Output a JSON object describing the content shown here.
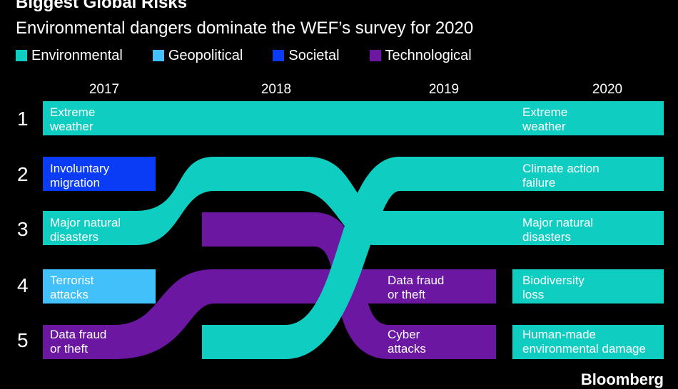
{
  "title": "Biggest Global Risks",
  "subtitle": "Environmental dangers dominate the WEF’s survey for 2020",
  "colors": {
    "Environmental": "#10cdc2",
    "Geopolitical": "#41c0f9",
    "Societal": "#0a3cf5",
    "Technological": "#6b17a2"
  },
  "legend": [
    {
      "name": "Environmental"
    },
    {
      "name": "Geopolitical"
    },
    {
      "name": "Societal"
    },
    {
      "name": "Technological"
    }
  ],
  "chart_data": {
    "type": "table",
    "years": [
      "2017",
      "2018",
      "2019",
      "2020"
    ],
    "ranks": [
      "1",
      "2",
      "3",
      "4",
      "5"
    ],
    "rankings": {
      "2017": [
        {
          "rank": 1,
          "risk": "Extreme weather",
          "category": "Environmental"
        },
        {
          "rank": 2,
          "risk": "Involuntary migration",
          "category": "Societal"
        },
        {
          "rank": 3,
          "risk": "Major natural disasters",
          "category": "Environmental"
        },
        {
          "rank": 4,
          "risk": "Terrorist attacks",
          "category": "Geopolitical"
        },
        {
          "rank": 5,
          "risk": "Data fraud or theft",
          "category": "Technological"
        }
      ],
      "2019": [
        {
          "rank": 4,
          "risk": "Data fraud or theft",
          "category": "Technological"
        },
        {
          "rank": 5,
          "risk": "Cyber attacks",
          "category": "Technological"
        }
      ],
      "2020": [
        {
          "rank": 1,
          "risk": "Extreme weather",
          "category": "Environmental"
        },
        {
          "rank": 2,
          "risk": "Climate action failure",
          "category": "Environmental"
        },
        {
          "rank": 3,
          "risk": "Major natural disasters",
          "category": "Environmental"
        },
        {
          "rank": 4,
          "risk": "Biodiversity loss",
          "category": "Environmental"
        },
        {
          "rank": 5,
          "risk": "Human-made environmental damage",
          "category": "Environmental"
        }
      ]
    }
  },
  "labels": {
    "y2017_r1": [
      "Extreme",
      "weather"
    ],
    "y2017_r2": [
      "Involuntary",
      "migration"
    ],
    "y2017_r3": [
      "Major natural",
      "disasters"
    ],
    "y2017_r4": [
      "Terrorist",
      "attacks"
    ],
    "y2017_r5": [
      "Data fraud",
      "or theft"
    ],
    "y2019_r4": [
      "Data fraud",
      "or theft"
    ],
    "y2019_r5": [
      "Cyber",
      "attacks"
    ],
    "y2020_r1": [
      "Extreme",
      "weather"
    ],
    "y2020_r2": [
      "Climate action",
      "failure"
    ],
    "y2020_r3": [
      "Major natural",
      "disasters"
    ],
    "y2020_r4": [
      "Biodiversity",
      "loss"
    ],
    "y2020_r5": [
      "Human-made",
      "environmental damage"
    ]
  },
  "source_logo": "Bloomberg"
}
